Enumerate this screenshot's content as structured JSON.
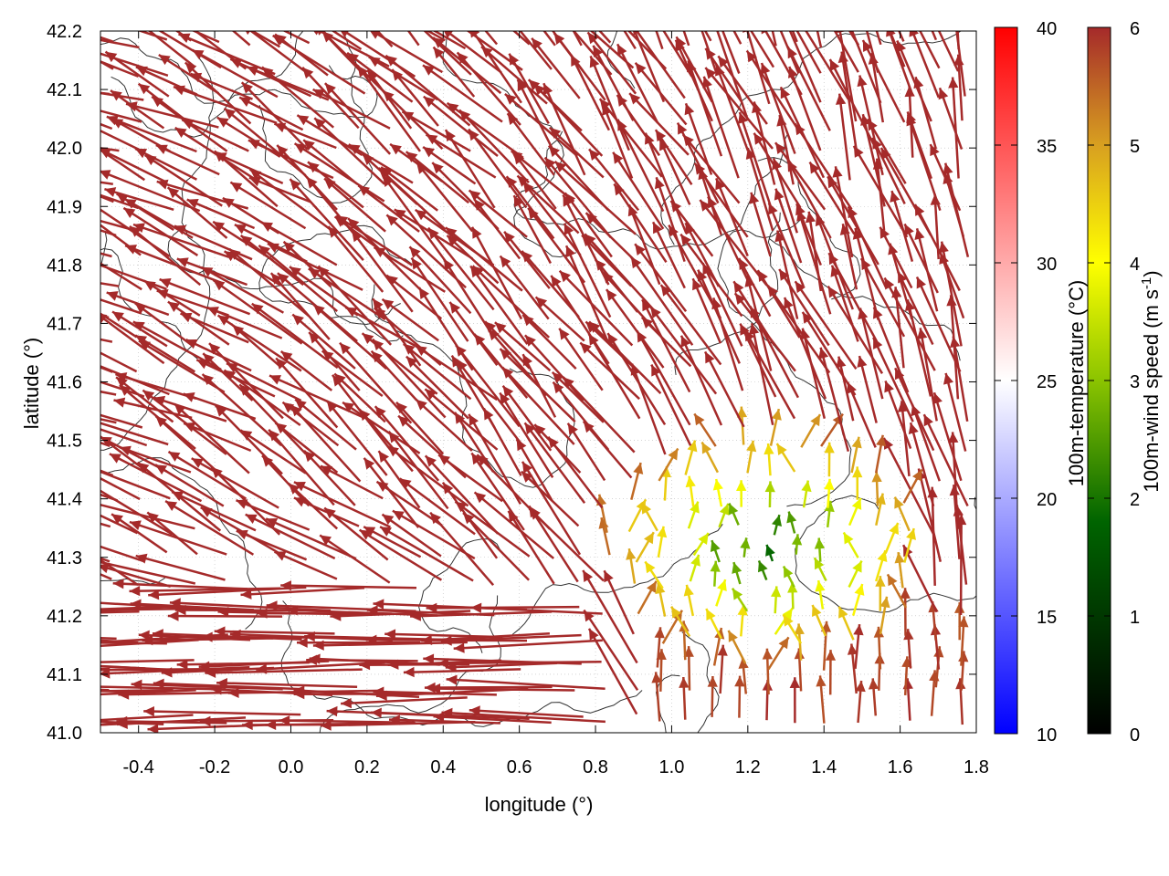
{
  "chart_data": {
    "type": "vector-field",
    "xlabel": "longitude (°)",
    "ylabel": "latitude (°)",
    "xlim": [
      -0.5,
      1.8
    ],
    "ylim": [
      41.0,
      42.2
    ],
    "x_ticks": [
      "-0.4",
      "-0.2",
      "0.0",
      "0.2",
      "0.4",
      "0.6",
      "0.8",
      "1.0",
      "1.2",
      "1.4",
      "1.6",
      "1.8"
    ],
    "y_ticks": [
      "41.0",
      "41.1",
      "41.2",
      "41.3",
      "41.4",
      "41.5",
      "41.6",
      "41.7",
      "41.8",
      "41.9",
      "42.0",
      "42.1",
      "42.2"
    ],
    "grid": true,
    "wind_vectors": {
      "description_color": "#a52a2a",
      "dominant_flow": "north-westward over most of domain, weak winds near coast around (1.2, 41.3)",
      "weak_zone_center": [
        1.25,
        41.3
      ],
      "weak_zone_speed_ms": 3.5,
      "max_speed_ms": 6
    },
    "colorbars": [
      {
        "label": "100m-temperature (°C)",
        "range": [
          10,
          40
        ],
        "ticks": [
          "10",
          "15",
          "20",
          "25",
          "30",
          "35",
          "40"
        ],
        "colors": [
          "#0000ff",
          "#ffffff",
          "#ff0000"
        ]
      },
      {
        "label_main": "100m-wind speed (m s",
        "label_sup": "-1",
        "label_end": ")",
        "range": [
          0,
          6
        ],
        "ticks": [
          "0",
          "1",
          "2",
          "3",
          "4",
          "5",
          "6"
        ],
        "colors": [
          "#000000",
          "#006400",
          "#8bc400",
          "#ffff00",
          "#d8a020",
          "#a52a2a"
        ]
      }
    ]
  }
}
